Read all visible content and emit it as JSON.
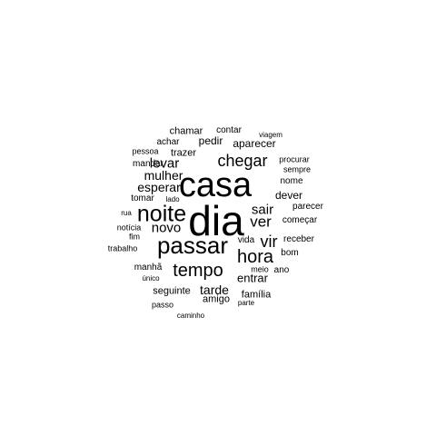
{
  "text_color": "#000000",
  "background_color": "#ffffff",
  "words": [
    {
      "text": "dia"
    },
    {
      "text": "casa"
    },
    {
      "text": "passar"
    },
    {
      "text": "noite"
    },
    {
      "text": "tempo"
    },
    {
      "text": "hora"
    },
    {
      "text": "chegar"
    },
    {
      "text": "vir"
    },
    {
      "text": "ver"
    },
    {
      "text": "sair"
    },
    {
      "text": "levar"
    },
    {
      "text": "novo"
    },
    {
      "text": "mulher"
    },
    {
      "text": "esperar"
    },
    {
      "text": "tarde"
    },
    {
      "text": "entrar"
    },
    {
      "text": "dever"
    },
    {
      "text": "aparecer"
    },
    {
      "text": "pedir"
    },
    {
      "text": "trazer"
    },
    {
      "text": "seguinte"
    },
    {
      "text": "amigo"
    },
    {
      "text": "família"
    },
    {
      "text": "chamar"
    },
    {
      "text": "contar"
    },
    {
      "text": "achar"
    },
    {
      "text": "mandar"
    },
    {
      "text": "tomar"
    },
    {
      "text": "nome"
    },
    {
      "text": "parecer"
    },
    {
      "text": "começar"
    },
    {
      "text": "receber"
    },
    {
      "text": "bom"
    },
    {
      "text": "ano"
    },
    {
      "text": "manhã"
    },
    {
      "text": "vida"
    },
    {
      "text": "pessoa"
    },
    {
      "text": "procurar"
    },
    {
      "text": "sempre"
    },
    {
      "text": "viagem"
    },
    {
      "text": "lado"
    },
    {
      "text": "rua"
    },
    {
      "text": "notícia"
    },
    {
      "text": "fim"
    },
    {
      "text": "trabalho"
    },
    {
      "text": "meio"
    },
    {
      "text": "único"
    },
    {
      "text": "passo"
    },
    {
      "text": "parte"
    },
    {
      "text": "caminho"
    }
  ]
}
